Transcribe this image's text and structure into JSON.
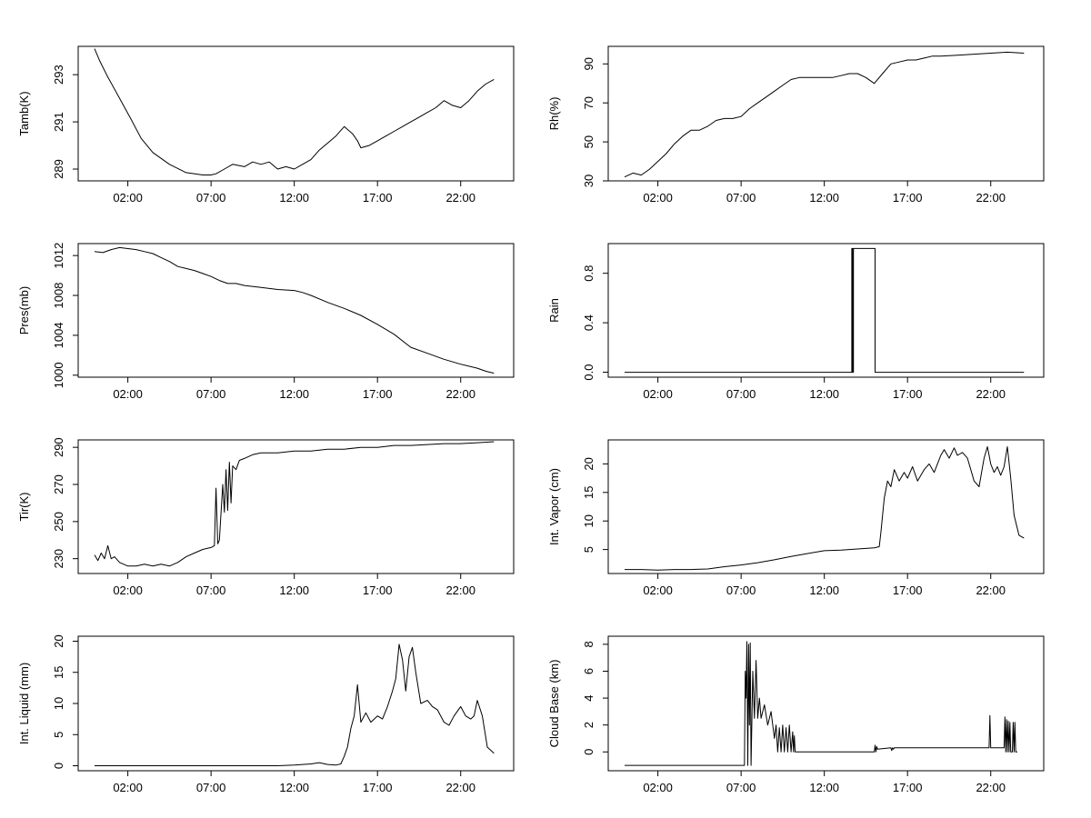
{
  "chart_data": [
    {
      "type": "line",
      "panel": "tamb",
      "ylabel": "Tamb(K)",
      "xlim": [
        0.0,
        24.2
      ],
      "xticks": [
        2,
        7,
        12,
        17,
        22
      ],
      "xtick_labels": [
        "02:00",
        "07:00",
        "12:00",
        "17:00",
        "22:00"
      ],
      "ylim": [
        288.5,
        294.2
      ],
      "yticks": [
        289,
        291,
        293
      ],
      "ytick_labels": [
        "289",
        "291",
        "293"
      ],
      "series": [
        {
          "x": [
            0.0,
            0.3,
            0.8,
            1.5,
            2.2,
            2.8,
            3.5,
            4.5,
            5.5,
            6.5,
            7.0,
            7.3,
            7.8,
            8.3,
            9.0,
            9.5,
            10.0,
            10.5,
            11.0,
            11.5,
            12.0,
            12.5,
            13.0,
            13.5,
            14.0,
            14.5,
            15.0,
            15.5,
            15.8,
            16.0,
            16.5,
            17.0,
            17.5,
            18.0,
            18.5,
            19.0,
            19.5,
            20.0,
            20.5,
            21.0,
            21.5,
            22.0,
            22.5,
            23.0,
            23.5,
            24.0
          ],
          "y": [
            294.1,
            293.6,
            292.9,
            292.0,
            291.1,
            290.3,
            289.7,
            289.2,
            288.85,
            288.75,
            288.75,
            288.8,
            289.0,
            289.2,
            289.1,
            289.3,
            289.2,
            289.3,
            289.0,
            289.1,
            289.0,
            289.2,
            289.4,
            289.8,
            290.1,
            290.4,
            290.8,
            290.5,
            290.2,
            289.9,
            290.0,
            290.2,
            290.4,
            290.6,
            290.8,
            291.0,
            291.2,
            291.4,
            291.6,
            291.9,
            291.7,
            291.6,
            291.9,
            292.3,
            292.6,
            292.8
          ]
        }
      ]
    },
    {
      "type": "line",
      "panel": "rh",
      "ylabel": "Rh(%)",
      "xlim": [
        0.0,
        24.2
      ],
      "xticks": [
        2,
        7,
        12,
        17,
        22
      ],
      "xtick_labels": [
        "02:00",
        "07:00",
        "12:00",
        "17:00",
        "22:00"
      ],
      "ylim": [
        30,
        99
      ],
      "yticks": [
        30,
        50,
        70,
        90
      ],
      "ytick_labels": [
        "30",
        "50",
        "70",
        "90"
      ],
      "series": [
        {
          "x": [
            0.0,
            0.5,
            1.0,
            1.5,
            2.0,
            2.5,
            3.0,
            3.5,
            4.0,
            4.5,
            5.0,
            5.5,
            6.0,
            6.5,
            7.0,
            7.5,
            8.0,
            8.5,
            9.0,
            9.5,
            10.0,
            10.5,
            11.0,
            11.5,
            12.0,
            12.5,
            13.0,
            13.5,
            14.0,
            14.5,
            15.0,
            15.5,
            16.0,
            16.5,
            17.0,
            17.5,
            18.0,
            18.5,
            19.0,
            20.0,
            21.0,
            22.0,
            23.0,
            24.0
          ],
          "y": [
            32,
            34,
            33,
            36,
            40,
            44,
            49,
            53,
            56,
            56,
            58,
            61,
            62,
            62,
            63,
            67,
            70,
            73,
            76,
            79,
            82,
            83,
            83,
            83,
            83,
            83,
            84,
            85,
            85,
            83,
            80,
            85,
            90,
            91,
            92,
            92,
            93,
            94,
            94,
            94.5,
            95,
            95.5,
            96,
            95.5
          ]
        }
      ]
    },
    {
      "type": "line",
      "panel": "pres",
      "ylabel": "Pres(mb)",
      "xlim": [
        0.0,
        24.2
      ],
      "xticks": [
        2,
        7,
        12,
        17,
        22
      ],
      "xtick_labels": [
        "02:00",
        "07:00",
        "12:00",
        "17:00",
        "22:00"
      ],
      "ylim": [
        999.8,
        1013.2
      ],
      "yticks": [
        1000,
        1004,
        1008,
        1012
      ],
      "ytick_labels": [
        "1000",
        "1004",
        "1008",
        "1012"
      ],
      "series": [
        {
          "x": [
            0.0,
            0.5,
            1.0,
            1.5,
            2.0,
            2.5,
            3.0,
            3.5,
            4.0,
            4.5,
            5.0,
            5.5,
            6.0,
            6.5,
            7.0,
            7.5,
            8.0,
            8.5,
            9.0,
            10.0,
            11.0,
            12.0,
            12.5,
            13.0,
            14.0,
            15.0,
            16.0,
            17.0,
            18.0,
            19.0,
            20.0,
            21.0,
            22.0,
            23.0,
            23.5,
            24.0
          ],
          "y": [
            1012.4,
            1012.3,
            1012.6,
            1012.8,
            1012.7,
            1012.6,
            1012.4,
            1012.2,
            1011.8,
            1011.4,
            1010.9,
            1010.7,
            1010.5,
            1010.2,
            1009.9,
            1009.5,
            1009.2,
            1009.2,
            1009.0,
            1008.8,
            1008.6,
            1008.5,
            1008.3,
            1008.0,
            1007.3,
            1006.7,
            1006.0,
            1005.1,
            1004.1,
            1002.8,
            1002.2,
            1001.6,
            1001.1,
            1000.7,
            1000.4,
            1000.2
          ]
        }
      ]
    },
    {
      "type": "line",
      "panel": "rain",
      "ylabel": "Rain",
      "xlim": [
        0.0,
        24.2
      ],
      "xticks": [
        2,
        7,
        12,
        17,
        22
      ],
      "xtick_labels": [
        "02:00",
        "07:00",
        "12:00",
        "17:00",
        "22:00"
      ],
      "ylim": [
        -0.04,
        1.04
      ],
      "yticks": [
        0.0,
        0.4,
        0.8
      ],
      "ytick_labels": [
        "0.0",
        "0.4",
        "0.8"
      ],
      "series": [
        {
          "x": [
            0.0,
            13.65,
            13.65,
            13.7,
            13.7,
            13.75,
            13.75,
            15.05,
            15.05,
            24.0
          ],
          "y": [
            0,
            0,
            1,
            1,
            0,
            0,
            1,
            1,
            0,
            0
          ]
        }
      ]
    },
    {
      "type": "line",
      "panel": "tir",
      "ylabel": "Tir(K)",
      "xlim": [
        0.0,
        24.2
      ],
      "xticks": [
        2,
        7,
        12,
        17,
        22
      ],
      "xtick_labels": [
        "02:00",
        "07:00",
        "12:00",
        "17:00",
        "22:00"
      ],
      "ylim": [
        222,
        294
      ],
      "yticks": [
        230,
        250,
        270,
        290
      ],
      "ytick_labels": [
        "230",
        "250",
        "270",
        "290"
      ],
      "series": [
        {
          "x": [
            0.0,
            0.2,
            0.4,
            0.6,
            0.8,
            1.0,
            1.2,
            1.5,
            2.0,
            2.5,
            3.0,
            3.5,
            4.0,
            4.5,
            5.0,
            5.5,
            6.0,
            6.5,
            7.0,
            7.2,
            7.3,
            7.4,
            7.5,
            7.7,
            7.8,
            7.9,
            8.0,
            8.1,
            8.2,
            8.3,
            8.5,
            8.7,
            9.0,
            9.5,
            10.0,
            11.0,
            12.0,
            13.0,
            14.0,
            15.0,
            16.0,
            17.0,
            18.0,
            19.0,
            20.0,
            21.0,
            22.0,
            23.0,
            24.0
          ],
          "y": [
            232,
            229,
            233,
            230,
            237,
            230,
            231,
            228,
            226,
            226,
            227,
            226,
            227,
            226,
            228,
            231,
            233,
            235,
            236,
            237,
            268,
            238,
            240,
            270,
            255,
            278,
            256,
            282,
            260,
            280,
            278,
            283,
            284,
            286,
            287,
            287,
            288,
            288,
            289,
            289,
            290,
            290,
            291,
            291,
            291.5,
            292,
            292,
            292.5,
            293
          ]
        }
      ]
    },
    {
      "type": "line",
      "panel": "vapor",
      "ylabel": "Int. Vapor (cm)",
      "xlim": [
        0.0,
        24.2
      ],
      "xticks": [
        2,
        7,
        12,
        17,
        22
      ],
      "xtick_labels": [
        "02:00",
        "07:00",
        "12:00",
        "17:00",
        "22:00"
      ],
      "ylim": [
        0.8,
        24.2
      ],
      "yticks": [
        5,
        10,
        15,
        20
      ],
      "ytick_labels": [
        "5",
        "10",
        "15",
        "20"
      ],
      "series": [
        {
          "x": [
            0.0,
            1.0,
            2.0,
            3.0,
            4.0,
            5.0,
            6.0,
            7.0,
            8.0,
            9.0,
            10.0,
            11.0,
            12.0,
            13.0,
            14.0,
            15.0,
            15.3,
            15.4,
            15.6,
            15.8,
            16.0,
            16.2,
            16.5,
            16.8,
            17.0,
            17.3,
            17.6,
            18.0,
            18.3,
            18.6,
            19.0,
            19.2,
            19.5,
            19.8,
            20.0,
            20.3,
            20.6,
            21.0,
            21.3,
            21.6,
            21.8,
            22.0,
            22.2,
            22.4,
            22.6,
            22.8,
            23.0,
            23.2,
            23.4,
            23.7,
            24.0
          ],
          "y": [
            1.5,
            1.5,
            1.4,
            1.5,
            1.5,
            1.6,
            2.0,
            2.3,
            2.7,
            3.2,
            3.8,
            4.3,
            4.8,
            4.9,
            5.1,
            5.3,
            5.5,
            8.0,
            14.0,
            17.0,
            16.0,
            19.0,
            17.0,
            18.5,
            17.5,
            19.5,
            17.0,
            19.0,
            20.0,
            18.5,
            21.5,
            22.5,
            21.0,
            22.8,
            21.5,
            22.0,
            21.0,
            17.0,
            16.0,
            21.0,
            23.0,
            20.0,
            18.5,
            19.5,
            18.0,
            19.5,
            23.0,
            17.5,
            11.0,
            7.5,
            7.0
          ]
        }
      ]
    },
    {
      "type": "line",
      "panel": "liquid",
      "ylabel": "Int. Liquid (mm)",
      "xlim": [
        0.0,
        24.2
      ],
      "xticks": [
        2,
        7,
        12,
        17,
        22
      ],
      "xtick_labels": [
        "02:00",
        "07:00",
        "12:00",
        "17:00",
        "22:00"
      ],
      "ylim": [
        -0.8,
        20.8
      ],
      "yticks": [
        0,
        5,
        10,
        15,
        20
      ],
      "ytick_labels": [
        "0",
        "5",
        "10",
        "15",
        "20"
      ],
      "series": [
        {
          "x": [
            0.0,
            2.0,
            4.0,
            6.0,
            8.0,
            10.0,
            11.0,
            12.0,
            12.5,
            13.0,
            13.5,
            14.0,
            14.5,
            14.8,
            15.0,
            15.2,
            15.4,
            15.6,
            15.8,
            16.0,
            16.3,
            16.6,
            17.0,
            17.3,
            17.6,
            17.9,
            18.1,
            18.3,
            18.5,
            18.7,
            18.9,
            19.1,
            19.3,
            19.6,
            20.0,
            20.3,
            20.6,
            21.0,
            21.3,
            21.6,
            22.0,
            22.3,
            22.6,
            22.8,
            23.0,
            23.3,
            23.6,
            24.0
          ],
          "y": [
            0,
            0,
            0,
            0,
            0,
            0,
            0,
            0.1,
            0.2,
            0.3,
            0.5,
            0.2,
            0.1,
            0.3,
            1.5,
            3.0,
            6.0,
            8.0,
            13.0,
            7.0,
            8.5,
            7.0,
            8.0,
            7.5,
            9.5,
            12.0,
            14.0,
            19.5,
            17.0,
            12.0,
            17.5,
            19.0,
            15.0,
            10.0,
            10.5,
            9.5,
            9.0,
            7.0,
            6.5,
            8.0,
            9.5,
            8.0,
            7.5,
            8.0,
            10.5,
            8.0,
            3.0,
            2.0
          ]
        }
      ]
    },
    {
      "type": "line",
      "panel": "cloudbase",
      "ylabel": "Cloud Base (km)",
      "xlim": [
        0.0,
        24.2
      ],
      "xticks": [
        2,
        7,
        12,
        17,
        22
      ],
      "xtick_labels": [
        "02:00",
        "07:00",
        "12:00",
        "17:00",
        "22:00"
      ],
      "ylim": [
        -1.4,
        8.6
      ],
      "yticks": [
        0,
        2,
        4,
        6,
        8
      ],
      "ytick_labels": [
        "0",
        "2",
        "4",
        "6",
        "8"
      ],
      "series": [
        {
          "x": [
            0.0,
            7.1,
            7.2,
            7.25,
            7.3,
            7.35,
            7.4,
            7.45,
            7.5,
            7.55,
            7.6,
            7.7,
            7.8,
            7.9,
            8.0,
            8.1,
            8.2,
            8.4,
            8.6,
            8.8,
            9.0,
            9.1,
            9.2,
            9.3,
            9.4,
            9.5,
            9.6,
            9.7,
            9.8,
            9.9,
            10.0,
            10.1,
            10.15,
            10.2,
            10.25,
            11.0,
            12.0,
            13.0,
            14.0,
            15.0,
            15.05,
            15.1,
            15.15,
            15.2,
            16.0,
            16.05,
            16.1,
            16.15,
            16.2,
            17.0,
            18.0,
            19.0,
            20.0,
            21.0,
            21.9,
            21.95,
            22.0,
            22.05,
            22.1,
            22.8,
            22.85,
            22.9,
            22.95,
            23.0,
            23.05,
            23.1,
            23.15,
            23.2,
            23.3,
            23.35,
            23.4,
            23.45,
            23.5,
            23.6
          ],
          "y": [
            -1,
            -1,
            -1,
            6.0,
            4.0,
            8.2,
            -1,
            8.0,
            2.0,
            8.1,
            -1,
            6.0,
            2.5,
            6.8,
            2.5,
            4.0,
            2.5,
            3.5,
            2.0,
            3.0,
            1.0,
            2.0,
            0.0,
            1.8,
            0.0,
            2.0,
            0.0,
            1.8,
            0.0,
            2.0,
            0.0,
            1.5,
            0.0,
            1.2,
            0.0,
            0.0,
            0.0,
            0.0,
            0.0,
            0.0,
            0.5,
            0.0,
            0.4,
            0.2,
            0.3,
            0.1,
            0.3,
            0.2,
            0.3,
            0.3,
            0.3,
            0.3,
            0.3,
            0.3,
            0.3,
            2.7,
            0.3,
            0.3,
            0.3,
            0.3,
            2.6,
            0.0,
            2.4,
            0.0,
            2.3,
            0.0,
            2.2,
            0.0,
            0.0,
            2.2,
            0.0,
            2.2,
            0.0,
            0.0
          ]
        }
      ]
    }
  ]
}
